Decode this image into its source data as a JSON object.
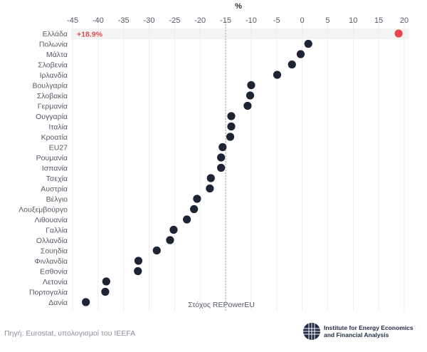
{
  "chart_data": {
    "type": "scatter",
    "orientation": "horizontal",
    "unit_label": "%",
    "x_ticks": [
      -45,
      -40,
      -35,
      -30,
      -25,
      -20,
      -15,
      -10,
      -5,
      0,
      5,
      10,
      15,
      20
    ],
    "xlim": [
      -45,
      20
    ],
    "grid": true,
    "categories": [
      "Ελλάδα",
      "Πολωνία",
      "Μάλτα",
      "Σλοβενία",
      "Ιρλανδία",
      "Βουλγαρία",
      "Σλοβακία",
      "Γερμανία",
      "Ουγγαρία",
      "Ιταλία",
      "Κροατία",
      "EU27",
      "Ρουμανία",
      "Ισπανία",
      "Τσεχία",
      "Αυστρία",
      "Βέλγιο",
      "Λουξεμβούργο",
      "Λιθουανία",
      "Γαλλία",
      "Ολλανδία",
      "Σουηδία",
      "Φινλανδία",
      "Εσθονία",
      "Λετονία",
      "Πορτογαλία",
      "Δανία"
    ],
    "values": [
      18.9,
      1.2,
      -0.3,
      -2.0,
      -4.9,
      -10.0,
      -10.2,
      -10.7,
      -13.9,
      -13.9,
      -14.1,
      -15.6,
      -15.9,
      -15.9,
      -17.9,
      -18.1,
      -20.6,
      -21.2,
      -22.6,
      -25.2,
      -25.9,
      -28.5,
      -32.1,
      -32.2,
      -38.4,
      -38.6,
      -42.4
    ],
    "highlight": {
      "category": "Ελλάδα",
      "label": "+18.9%",
      "color": "#e8474c"
    },
    "point_color": "#1d2433",
    "reference_line": {
      "value": -15,
      "label": "Στόχος REPowerEU"
    }
  },
  "source": "Πηγή: Eurostat, υπολογισμοί του IEEFA",
  "logo": {
    "line1": "Institute for Energy Economics",
    "line2": "and Financial Analysis"
  }
}
